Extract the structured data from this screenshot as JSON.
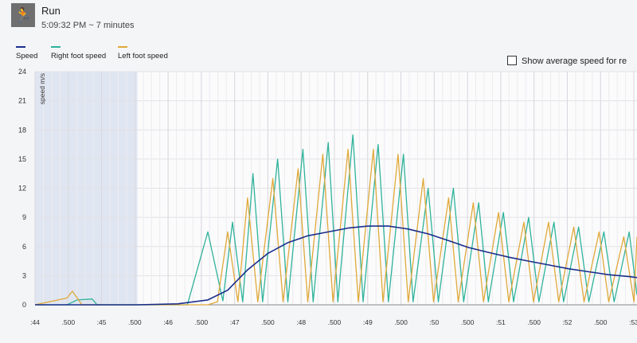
{
  "header": {
    "activity_icon": "runner-icon",
    "title": "Run",
    "subtitle": "5:09:32 PM ~ 7 minutes"
  },
  "legend": [
    {
      "label": "Speed",
      "color": "#1a2e8c"
    },
    {
      "label": "Right foot speed",
      "color": "#2fb39a"
    },
    {
      "label": "Left foot speed",
      "color": "#e0a93a"
    }
  ],
  "options": {
    "show_average_label": "Show average speed for re",
    "show_average_checked": false
  },
  "chart_data": {
    "type": "line",
    "ylabel": "speed m/s",
    "ylim": [
      0,
      24
    ],
    "yticks": [
      0,
      3,
      6,
      9,
      12,
      15,
      18,
      21,
      24
    ],
    "xlim": [
      17.433,
      17.533
    ],
    "x_tick_labels": [
      ":44",
      ".500",
      ":45",
      ".500",
      ":46",
      ".500",
      ":47",
      ".500",
      ":48",
      ".500",
      ":49",
      ".500",
      ":50",
      ".500",
      ":51",
      ".500",
      ":52",
      ".500",
      ":53"
    ],
    "grid": true,
    "legend_placement": "top-left",
    "highlight_region": [
      17.433,
      17.45
    ],
    "series": [
      {
        "name": "Speed",
        "x": [
          17.433,
          17.45,
          17.4567,
          17.4617,
          17.465,
          17.4683,
          17.4717,
          17.475,
          17.4783,
          17.4817,
          17.485,
          17.4883,
          17.4917,
          17.495,
          17.4983,
          17.5017,
          17.505,
          17.5083,
          17.5117,
          17.515,
          17.5183,
          17.5217,
          17.525,
          17.5283,
          17.5317,
          17.533
        ],
        "y": [
          0,
          0,
          0.1,
          0.5,
          1.5,
          3.6,
          5.3,
          6.4,
          7.1,
          7.5,
          7.9,
          8.1,
          8.1,
          7.8,
          7.3,
          6.6,
          5.9,
          5.4,
          4.9,
          4.5,
          4.1,
          3.7,
          3.4,
          3.1,
          2.9,
          2.8
        ]
      },
      {
        "name": "Right foot speed",
        "x": [
          17.433,
          17.4383,
          17.44,
          17.4425,
          17.4433,
          17.445,
          17.4583,
          17.4617,
          17.4642,
          17.4658,
          17.4675,
          17.4692,
          17.4708,
          17.4733,
          17.475,
          17.4775,
          17.4792,
          17.4817,
          17.4833,
          17.4858,
          17.4875,
          17.49,
          17.4917,
          17.4942,
          17.4958,
          17.4983,
          17.5,
          17.5025,
          17.5042,
          17.5067,
          17.5083,
          17.5108,
          17.5125,
          17.515,
          17.5167,
          17.5192,
          17.5208,
          17.5233,
          17.525,
          17.5275,
          17.5292,
          17.5317,
          17.533
        ],
        "y": [
          0,
          0,
          0.5,
          0.6,
          0,
          0,
          0,
          7.5,
          0.4,
          8.5,
          0.3,
          13.5,
          0.3,
          15,
          0.3,
          16,
          0.3,
          16.7,
          0.3,
          17.5,
          0.3,
          16.5,
          0.3,
          15.5,
          0.3,
          12,
          0.3,
          12,
          0.3,
          10.5,
          0.3,
          9.5,
          0.3,
          9,
          0.3,
          8.5,
          0.3,
          8,
          0.3,
          7.5,
          0.3,
          7.5,
          1
        ]
      },
      {
        "name": "Left foot speed",
        "x": [
          17.433,
          17.4383,
          17.4392,
          17.4408,
          17.4433,
          17.4617,
          17.4633,
          17.465,
          17.4667,
          17.4683,
          17.47,
          17.4725,
          17.4742,
          17.4767,
          17.4783,
          17.4808,
          17.4825,
          17.485,
          17.4867,
          17.4892,
          17.4908,
          17.4933,
          17.495,
          17.4975,
          17.4992,
          17.5017,
          17.5033,
          17.5058,
          17.5075,
          17.51,
          17.5117,
          17.5142,
          17.5158,
          17.5183,
          17.52,
          17.5225,
          17.5242,
          17.5267,
          17.5283,
          17.5308,
          17.5325,
          17.533
        ],
        "y": [
          0,
          0.7,
          1.4,
          0,
          0,
          0,
          0.3,
          7.5,
          0.3,
          11,
          0.3,
          13,
          0.3,
          14,
          0.3,
          15.5,
          0.3,
          16,
          0.3,
          16,
          0.3,
          15.5,
          0.3,
          13,
          0.3,
          11,
          0.3,
          10.5,
          0.3,
          9.5,
          0.3,
          8.5,
          0.3,
          8.5,
          0.3,
          8,
          0.3,
          7.5,
          0.3,
          7,
          0.3,
          7
        ]
      }
    ]
  }
}
